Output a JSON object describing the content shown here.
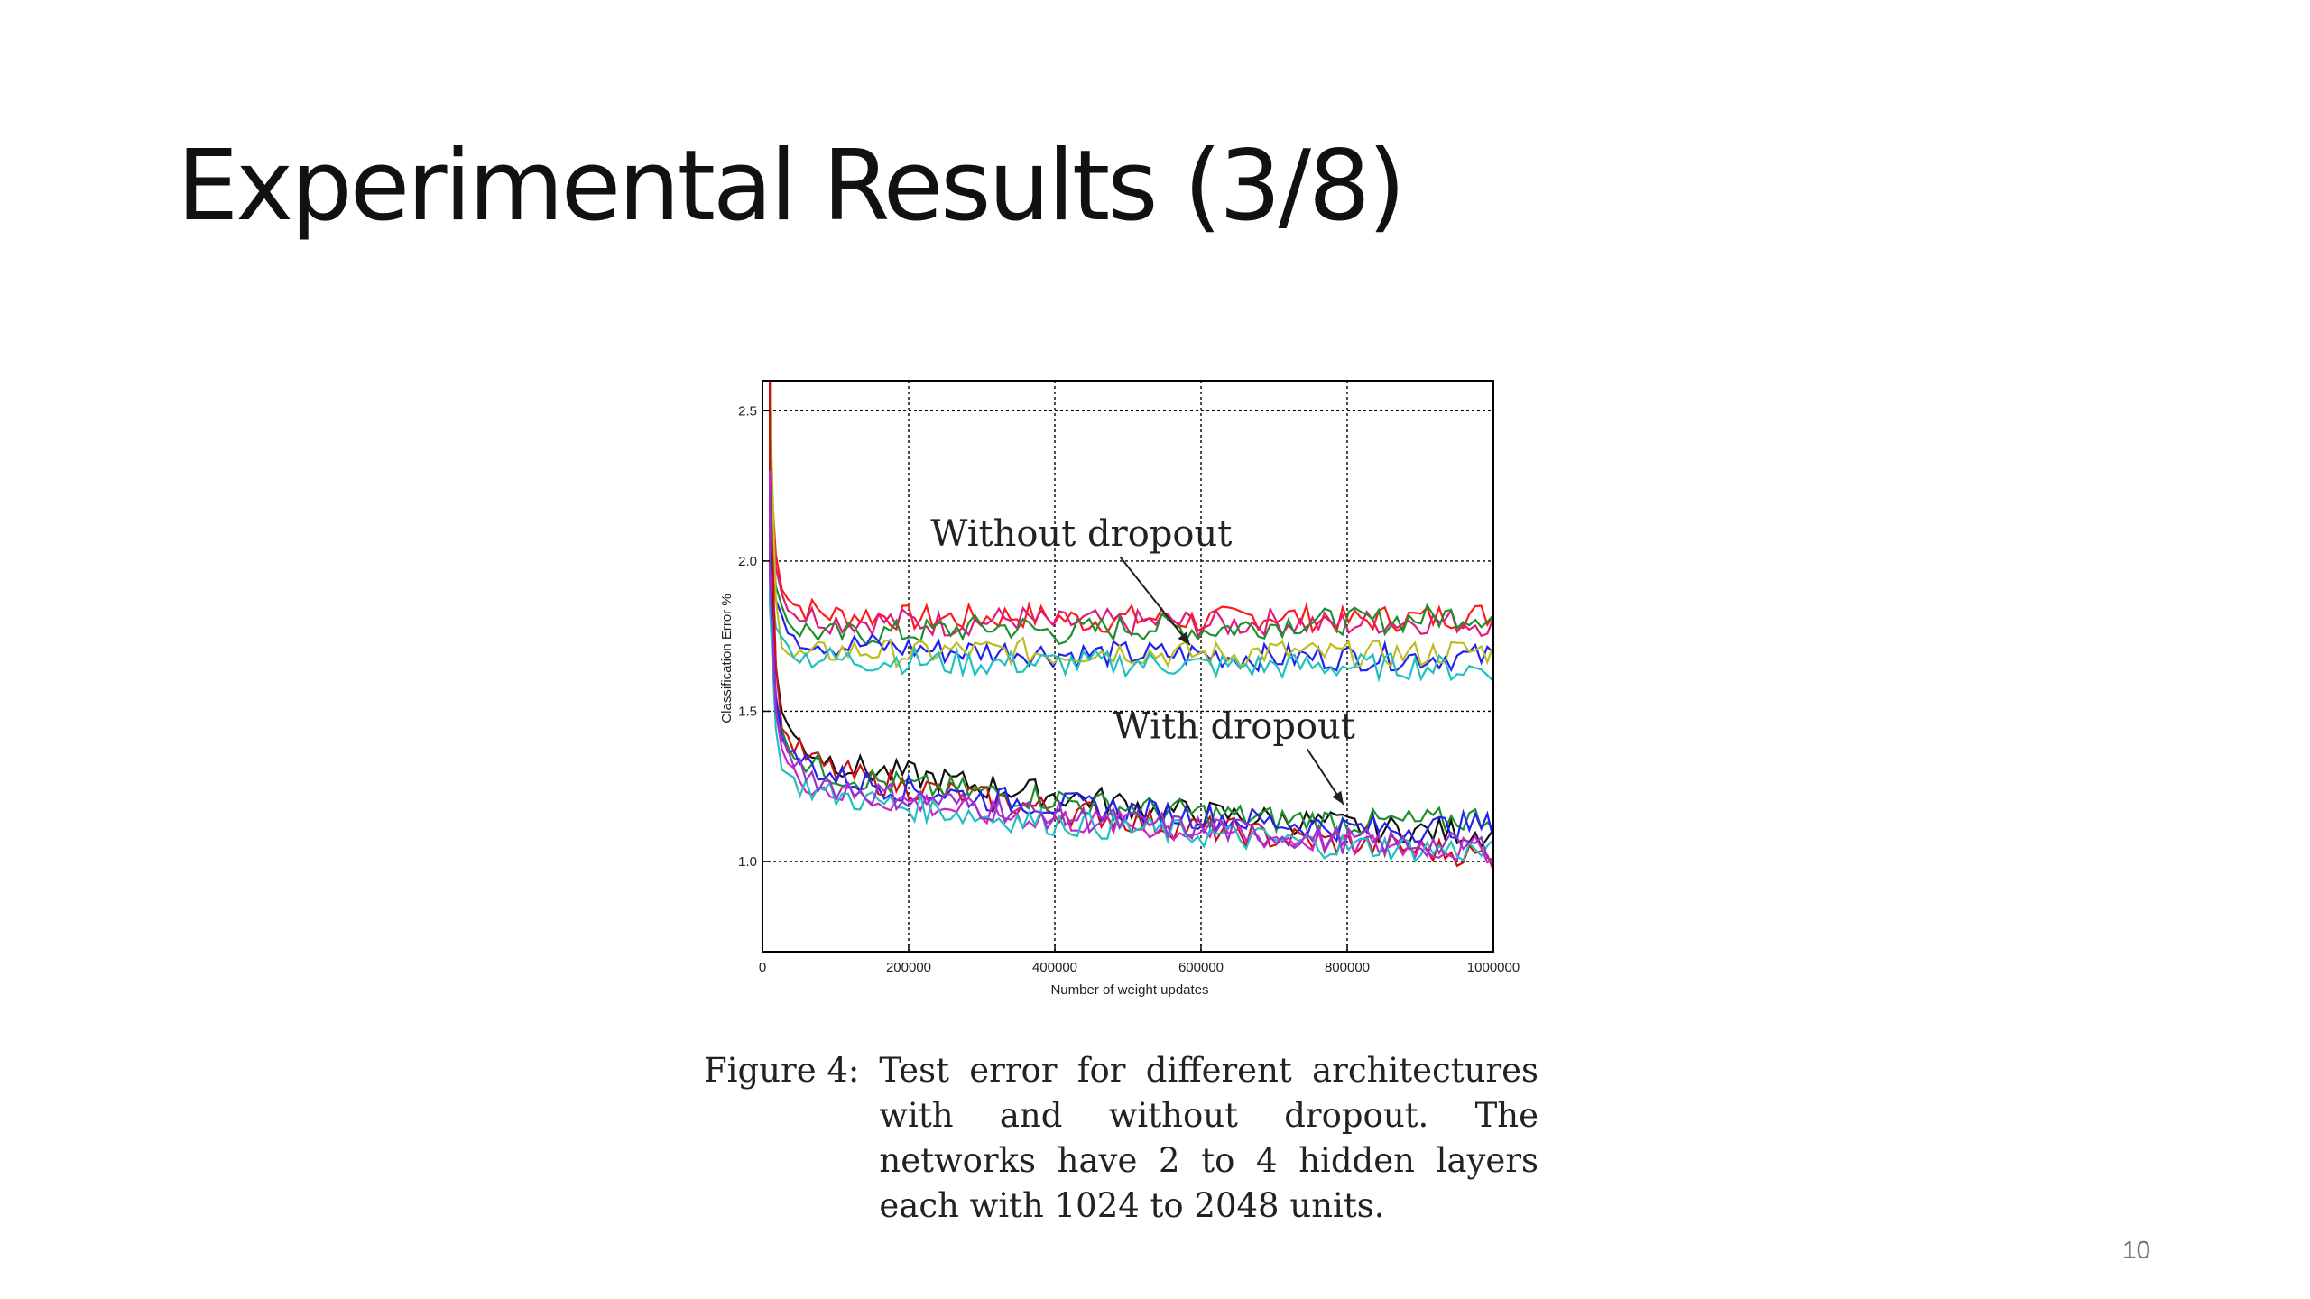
{
  "slide": {
    "title": "Experimental Results (3/8)",
    "page_number": "10"
  },
  "figure": {
    "label": "Figure 4:",
    "caption": "Test error for different architectures with and without dropout. The networks have 2 to 4 hidden layers each with 1024 to 2048 units."
  },
  "chart_data": {
    "type": "line",
    "title": "",
    "xlabel": "Number of weight updates",
    "ylabel": "Classification Error %",
    "xlim": [
      0,
      1000000
    ],
    "ylim": [
      0.7,
      2.6
    ],
    "xticks": [
      0,
      200000,
      400000,
      600000,
      800000,
      1000000
    ],
    "xtick_labels": [
      "0",
      "200000",
      "400000",
      "600000",
      "800000",
      "1000000"
    ],
    "yticks": [
      1.0,
      1.5,
      2.0,
      2.5
    ],
    "ytick_labels": [
      "1.0",
      "1.5",
      "2.0",
      "2.5"
    ],
    "grid": true,
    "annotations": [
      {
        "text": "Without dropout",
        "x": 230000,
        "y": 2.05,
        "arrow_to": [
          585000,
          1.72
        ]
      },
      {
        "text": "With dropout",
        "x": 480000,
        "y": 1.41,
        "arrow_to": [
          795000,
          1.19
        ]
      }
    ],
    "x": [
      10000,
      20000,
      40000,
      60000,
      80000,
      100000,
      150000,
      200000,
      250000,
      300000,
      350000,
      400000,
      450000,
      500000,
      550000,
      600000,
      650000,
      700000,
      750000,
      800000,
      850000,
      900000,
      950000,
      1000000
    ],
    "series": [
      {
        "color": "#ff1a1a",
        "values": [
          2.35,
          1.95,
          1.86,
          1.84,
          1.83,
          1.82,
          1.82,
          1.81,
          1.81,
          1.81,
          1.82,
          1.81,
          1.8,
          1.81,
          1.81,
          1.8,
          1.81,
          1.82,
          1.81,
          1.8,
          1.81,
          1.81,
          1.82,
          1.82
        ]
      },
      {
        "color": "#e0197d",
        "values": [
          2.3,
          1.92,
          1.83,
          1.82,
          1.81,
          1.8,
          1.8,
          1.8,
          1.79,
          1.8,
          1.81,
          1.79,
          1.8,
          1.79,
          1.8,
          1.79,
          1.79,
          1.8,
          1.79,
          1.79,
          1.8,
          1.8,
          1.8,
          1.79
        ]
      },
      {
        "color": "#1f8f2e",
        "values": [
          2.2,
          1.88,
          1.78,
          1.77,
          1.76,
          1.75,
          1.76,
          1.76,
          1.77,
          1.78,
          1.78,
          1.76,
          1.77,
          1.78,
          1.78,
          1.77,
          1.78,
          1.79,
          1.8,
          1.8,
          1.8,
          1.81,
          1.82,
          1.82
        ]
      },
      {
        "color": "#2222ee",
        "values": [
          2.1,
          1.82,
          1.76,
          1.74,
          1.73,
          1.72,
          1.72,
          1.71,
          1.7,
          1.7,
          1.7,
          1.69,
          1.69,
          1.69,
          1.69,
          1.69,
          1.68,
          1.68,
          1.68,
          1.68,
          1.68,
          1.68,
          1.68,
          1.68
        ]
      },
      {
        "color": "#bdbd22",
        "values": [
          2.55,
          1.75,
          1.68,
          1.68,
          1.69,
          1.7,
          1.7,
          1.69,
          1.7,
          1.7,
          1.7,
          1.69,
          1.7,
          1.7,
          1.69,
          1.69,
          1.69,
          1.7,
          1.69,
          1.69,
          1.69,
          1.69,
          1.7,
          1.7
        ]
      },
      {
        "color": "#20c0c0",
        "values": [
          2.0,
          1.75,
          1.7,
          1.68,
          1.68,
          1.67,
          1.67,
          1.67,
          1.66,
          1.66,
          1.66,
          1.66,
          1.66,
          1.66,
          1.66,
          1.65,
          1.65,
          1.65,
          1.65,
          1.65,
          1.65,
          1.65,
          1.64,
          1.64
        ]
      },
      {
        "color": "#111111",
        "values": [
          2.1,
          1.55,
          1.42,
          1.38,
          1.35,
          1.33,
          1.3,
          1.29,
          1.27,
          1.25,
          1.24,
          1.22,
          1.21,
          1.19,
          1.17,
          1.16,
          1.15,
          1.14,
          1.13,
          1.12,
          1.11,
          1.1,
          1.1,
          1.09
        ]
      },
      {
        "color": "#cc1111",
        "values": [
          2.3,
          1.5,
          1.38,
          1.35,
          1.32,
          1.3,
          1.27,
          1.25,
          1.23,
          1.21,
          1.19,
          1.17,
          1.16,
          1.14,
          1.12,
          1.11,
          1.1,
          1.08,
          1.07,
          1.06,
          1.05,
          1.04,
          1.03,
          1.01
        ]
      },
      {
        "color": "#1f8f2e",
        "values": [
          1.9,
          1.45,
          1.37,
          1.33,
          1.31,
          1.29,
          1.27,
          1.25,
          1.24,
          1.23,
          1.22,
          1.21,
          1.19,
          1.18,
          1.17,
          1.16,
          1.15,
          1.14,
          1.14,
          1.13,
          1.13,
          1.13,
          1.14,
          1.15
        ]
      },
      {
        "color": "#2222ee",
        "values": [
          1.95,
          1.45,
          1.36,
          1.33,
          1.3,
          1.28,
          1.26,
          1.24,
          1.23,
          1.21,
          1.2,
          1.19,
          1.18,
          1.17,
          1.16,
          1.15,
          1.14,
          1.13,
          1.12,
          1.11,
          1.11,
          1.11,
          1.12,
          1.12
        ]
      },
      {
        "color": "#cc22cc",
        "values": [
          2.0,
          1.4,
          1.3,
          1.27,
          1.25,
          1.23,
          1.21,
          1.2,
          1.18,
          1.16,
          1.15,
          1.14,
          1.13,
          1.12,
          1.11,
          1.1,
          1.09,
          1.08,
          1.07,
          1.06,
          1.05,
          1.05,
          1.04,
          1.04
        ]
      },
      {
        "color": "#20c0c0",
        "values": [
          1.85,
          1.35,
          1.27,
          1.25,
          1.23,
          1.22,
          1.2,
          1.18,
          1.17,
          1.15,
          1.14,
          1.13,
          1.12,
          1.11,
          1.1,
          1.09,
          1.08,
          1.07,
          1.06,
          1.05,
          1.05,
          1.04,
          1.04,
          1.03
        ]
      },
      {
        "color": "#9933cc",
        "values": [
          1.95,
          1.42,
          1.33,
          1.3,
          1.27,
          1.25,
          1.23,
          1.21,
          1.2,
          1.18,
          1.17,
          1.15,
          1.14,
          1.13,
          1.12,
          1.11,
          1.1,
          1.09,
          1.08,
          1.07,
          1.06,
          1.06,
          1.05,
          1.05
        ]
      }
    ]
  }
}
